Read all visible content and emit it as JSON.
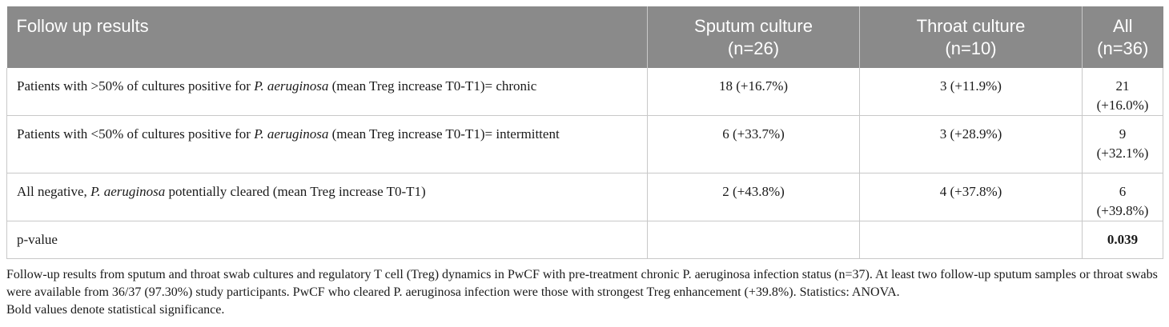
{
  "table": {
    "headers": [
      "Follow up results",
      "Sputum culture",
      "(n=26)",
      "Throat culture",
      "(n=10)",
      "All",
      "(n=36)"
    ],
    "rows": [
      {
        "label_pre": "Patients with >50% of cultures positive for ",
        "label_em": "P. aeruginosa",
        "label_post": " (mean Treg increase T0-T1)= chronic",
        "sputum": "18 (+16.7%)",
        "throat": "3 (+11.9%)",
        "all": "21 (+16.0%)"
      },
      {
        "label_pre": "Patients with <50% of cultures positive for ",
        "label_em": "P. aeruginosa",
        "label_post": " (mean Treg increase T0-T1)= intermittent",
        "sputum": "6 (+33.7%)",
        "throat": "3 (+28.9%)",
        "all": "9 (+32.1%)"
      },
      {
        "label_pre": "All negative, ",
        "label_em": "P. aeruginosa",
        "label_post": " potentially cleared (mean Treg increase T0-T1)",
        "sputum": "2 (+43.8%)",
        "throat": "4 (+37.8%)",
        "all": "6 (+39.8%)"
      },
      {
        "label_pre": "p-value",
        "label_em": "",
        "label_post": "",
        "sputum": "",
        "throat": "",
        "all": "0.039"
      }
    ]
  },
  "caption": {
    "main": "Follow-up results from sputum and throat swab cultures and regulatory T cell (Treg) dynamics in PwCF with pre-treatment chronic P. aeruginosa infection status (n=37). At least two follow-up sputum samples or throat swabs were available from 36/37 (97.30%) study participants. PwCF who cleared P. aeruginosa infection were those with strongest Treg enhancement (+39.8%). Statistics: ANOVA.",
    "note": "Bold values denote statistical significance."
  },
  "colors": {
    "header_bg": "#8a8a8a",
    "header_text": "#ffffff",
    "grid": "#c8c8c8"
  }
}
